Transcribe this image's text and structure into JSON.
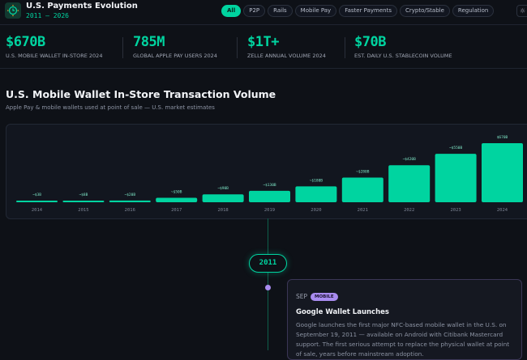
{
  "header": {
    "title": "U.S. Payments Evolution",
    "years": "2011 – 2026",
    "logo_icon": "clock-icon",
    "theme_icon": "sun-icon",
    "filters": [
      "All",
      "P2P",
      "Rails",
      "Mobile Pay",
      "Faster Payments",
      "Crypto/Stable",
      "Regulation"
    ],
    "active_filter": "All"
  },
  "stats": [
    {
      "value": "$670B",
      "label": "U.S. MOBILE WALLET IN-STORE 2024"
    },
    {
      "value": "785M",
      "label": "GLOBAL APPLE PAY USERS 2024"
    },
    {
      "value": "$1T+",
      "label": "ZELLE ANNUAL VOLUME 2024"
    },
    {
      "value": "$70B",
      "label": "EST. DAILY U.S. STABLECOIN VOLUME"
    }
  ],
  "section": {
    "title": "U.S. Mobile Wallet In-Store Transaction Volume",
    "subtitle": "Apple Pay & mobile wallets used at point of sale — U.S. market estimates"
  },
  "chart_data": {
    "type": "bar",
    "unit": "$B",
    "categories": [
      "2014",
      "2015",
      "2016",
      "2017",
      "2018",
      "2019",
      "2020",
      "2021",
      "2022",
      "2023",
      "2024"
    ],
    "values": [
      3,
      8,
      20,
      50,
      90,
      130,
      180,
      280,
      420,
      550,
      670
    ],
    "labels": [
      "~$3B",
      "~$8B",
      "~$20B",
      "~$50B",
      "~$90B",
      "~$130B",
      "~$180B",
      "~$280B",
      "~$420B",
      "~$550B",
      "$670B"
    ],
    "color": "#00d4a0",
    "ylim": [
      0,
      670
    ],
    "grid": false
  },
  "timeline": {
    "year": "2011",
    "event": {
      "month": "SEP",
      "tag": "MOBILE",
      "tag_color": "#a98cf0",
      "title": "Google Wallet Launches",
      "body": "Google launches the first major NFC-based mobile wallet in the U.S. on September 19, 2011 — available on Android with Citibank Mastercard support. The first serious attempt to replace the physical wallet at point of sale, years before mainstream adoption."
    }
  }
}
